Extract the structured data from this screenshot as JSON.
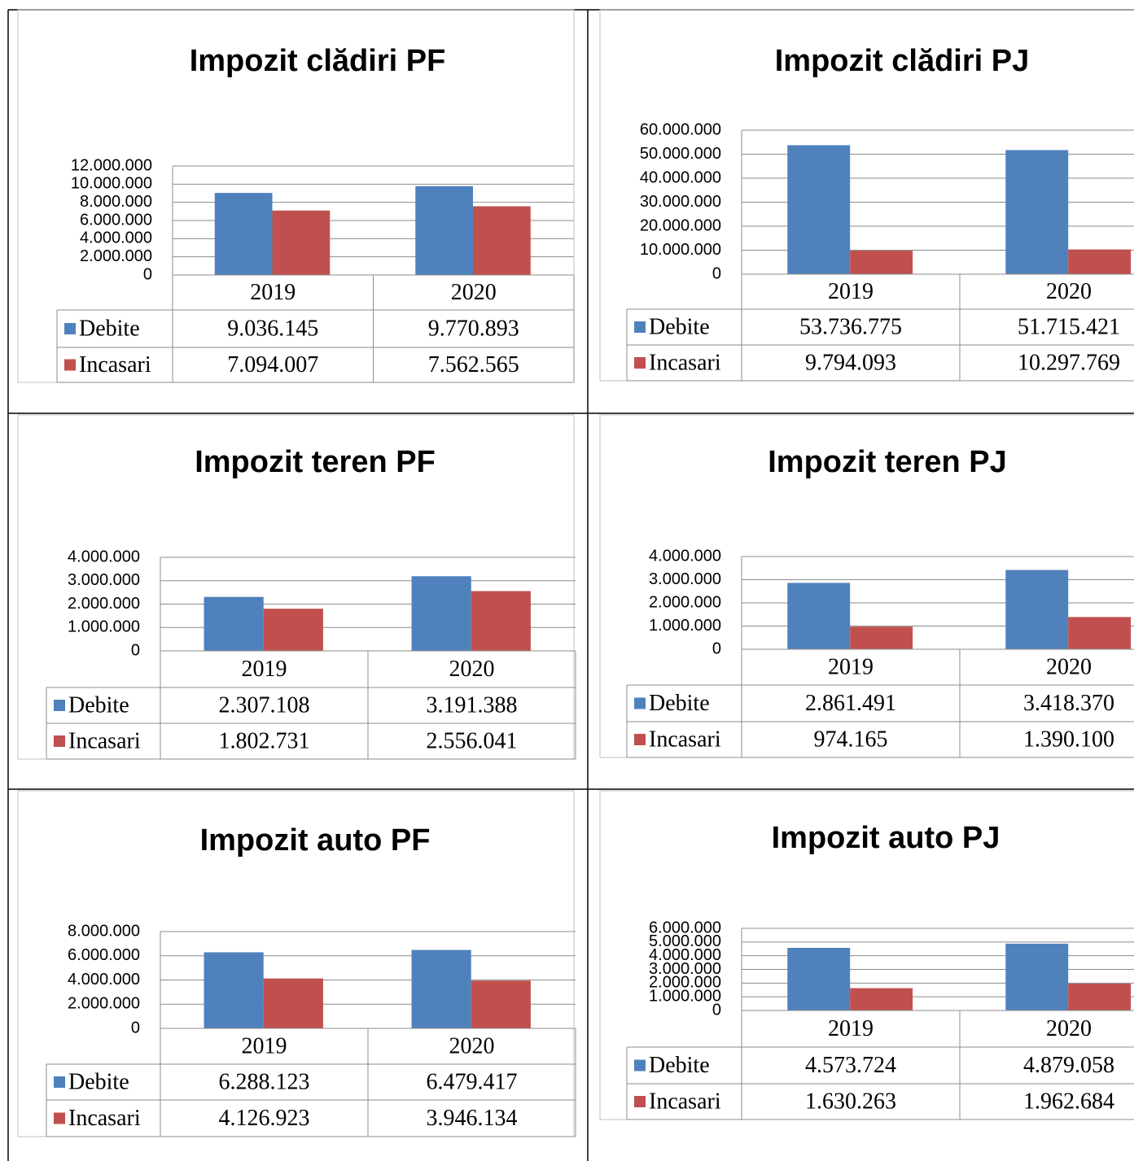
{
  "chart_data": [
    {
      "type": "bar",
      "title": "Impozit clădiri PF",
      "categories": [
        "2019",
        "2020"
      ],
      "series": [
        {
          "name": "Debite",
          "color": "#4f81bd",
          "values": [
            9036145,
            9770893
          ],
          "value_labels": [
            "9.036.145",
            "9.770.893"
          ]
        },
        {
          "name": "Incasari",
          "color": "#c0504d",
          "values": [
            7094007,
            7562565
          ],
          "value_labels": [
            "7.094.007",
            "7.562.565"
          ]
        }
      ],
      "ylim": [
        0,
        12000000
      ],
      "yticks": [
        0,
        {
          "value": 2000000,
          "label": "2.000.000"
        },
        {
          "value": 4000000,
          "label": "4.000.000"
        },
        {
          "value": 6000000,
          "label": "6.000.000"
        },
        {
          "value": 8000000,
          "label": "8.000.000"
        },
        {
          "value": 10000000,
          "label": "10.000.000"
        },
        {
          "value": 12000000,
          "label": "12.000.000"
        }
      ],
      "grid": true
    },
    {
      "type": "bar",
      "title": "Impozit clădiri PJ",
      "categories": [
        "2019",
        "2020"
      ],
      "series": [
        {
          "name": "Debite",
          "color": "#4f81bd",
          "values": [
            53736775,
            51715421
          ],
          "value_labels": [
            "53.736.775",
            "51.715.421"
          ]
        },
        {
          "name": "Incasari",
          "color": "#c0504d",
          "values": [
            9794093,
            10297769
          ],
          "value_labels": [
            "9.794.093",
            "10.297.769"
          ]
        }
      ],
      "ylim": [
        0,
        60000000
      ],
      "yticks": [
        0,
        {
          "value": 10000000,
          "label": "10.000.000"
        },
        {
          "value": 20000000,
          "label": "20.000.000"
        },
        {
          "value": 30000000,
          "label": "30.000.000"
        },
        {
          "value": 40000000,
          "label": "40.000.000"
        },
        {
          "value": 50000000,
          "label": "50.000.000"
        },
        {
          "value": 60000000,
          "label": "60.000.000"
        }
      ],
      "grid": true
    },
    {
      "type": "bar",
      "title": "Impozit teren PF",
      "categories": [
        "2019",
        "2020"
      ],
      "series": [
        {
          "name": "Debite",
          "color": "#4f81bd",
          "values": [
            2307108,
            3191388
          ],
          "value_labels": [
            "2.307.108",
            "3.191.388"
          ]
        },
        {
          "name": "Incasari",
          "color": "#c0504d",
          "values": [
            1802731,
            2556041
          ],
          "value_labels": [
            "1.802.731",
            "2.556.041"
          ]
        }
      ],
      "ylim": [
        0,
        4000000
      ],
      "yticks": [
        0,
        {
          "value": 1000000,
          "label": "1.000.000"
        },
        {
          "value": 2000000,
          "label": "2.000.000"
        },
        {
          "value": 3000000,
          "label": "3.000.000"
        },
        {
          "value": 4000000,
          "label": "4.000.000"
        }
      ],
      "grid": true
    },
    {
      "type": "bar",
      "title": "Impozit teren PJ",
      "categories": [
        "2019",
        "2020"
      ],
      "series": [
        {
          "name": "Debite",
          "color": "#4f81bd",
          "values": [
            2861491,
            3418370
          ],
          "value_labels": [
            "2.861.491",
            "3.418.370"
          ]
        },
        {
          "name": "Incasari",
          "color": "#c0504d",
          "values": [
            974165,
            1390100
          ],
          "value_labels": [
            "974.165",
            "1.390.100"
          ]
        }
      ],
      "ylim": [
        0,
        4000000
      ],
      "yticks": [
        0,
        {
          "value": 1000000,
          "label": "1.000.000"
        },
        {
          "value": 2000000,
          "label": "2.000.000"
        },
        {
          "value": 3000000,
          "label": "3.000.000"
        },
        {
          "value": 4000000,
          "label": "4.000.000"
        }
      ],
      "grid": true
    },
    {
      "type": "bar",
      "title": "Impozit auto PF",
      "categories": [
        "2019",
        "2020"
      ],
      "series": [
        {
          "name": "Debite",
          "color": "#4f81bd",
          "values": [
            6288123,
            6479417
          ],
          "value_labels": [
            "6.288.123",
            "6.479.417"
          ]
        },
        {
          "name": "Incasari",
          "color": "#c0504d",
          "values": [
            4126923,
            3946134
          ],
          "value_labels": [
            "4.126.923",
            "3.946.134"
          ]
        }
      ],
      "ylim": [
        0,
        8000000
      ],
      "yticks": [
        0,
        {
          "value": 2000000,
          "label": "2.000.000"
        },
        {
          "value": 4000000,
          "label": "4.000.000"
        },
        {
          "value": 6000000,
          "label": "6.000.000"
        },
        {
          "value": 8000000,
          "label": "8.000.000"
        }
      ],
      "grid": true
    },
    {
      "type": "bar",
      "title": "Impozit auto PJ",
      "categories": [
        "2019",
        "2020"
      ],
      "series": [
        {
          "name": "Debite",
          "color": "#4f81bd",
          "values": [
            4573724,
            4879058
          ],
          "value_labels": [
            "4.573.724",
            "4.879.058"
          ]
        },
        {
          "name": "Incasari",
          "color": "#c0504d",
          "values": [
            1630263,
            1962684
          ],
          "value_labels": [
            "1.630.263",
            "1.962.684"
          ]
        }
      ],
      "ylim": [
        0,
        6000000
      ],
      "yticks": [
        0,
        {
          "value": 1000000,
          "label": "1.000.000"
        },
        {
          "value": 2000000,
          "label": "2.000.000"
        },
        {
          "value": 3000000,
          "label": "3.000.000"
        },
        {
          "value": 4000000,
          "label": "4.000.000"
        },
        {
          "value": 5000000,
          "label": "5.000.000"
        },
        {
          "value": 6000000,
          "label": "6.000.000"
        }
      ],
      "grid": true
    }
  ]
}
